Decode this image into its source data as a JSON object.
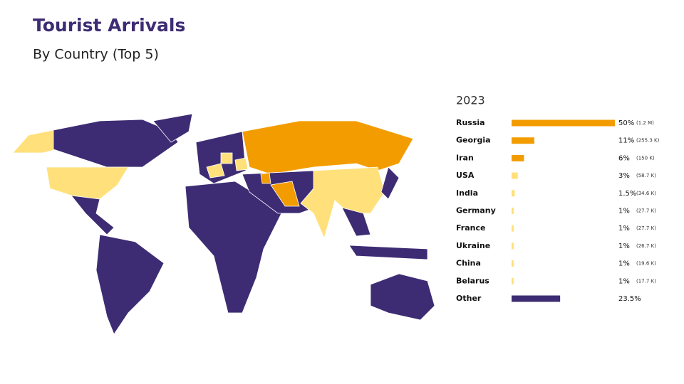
{
  "chart_data": {
    "type": "bar",
    "title": "Tourist Arrivals",
    "subtitle": "By Country (Top 5)",
    "year_label": "2023",
    "categories": [
      "Russia",
      "Georgia",
      "Iran",
      "USA",
      "India",
      "Germany",
      "France",
      "Ukraine",
      "China",
      "Belarus",
      "Other"
    ],
    "values": [
      50,
      11,
      6,
      3,
      1.5,
      1,
      1,
      1,
      1,
      1,
      23.5
    ],
    "value_labels": [
      "50%",
      "11%",
      "6%",
      "3%",
      "1.5%",
      "1%",
      "1%",
      "1%",
      "1%",
      "1%",
      "23.5%"
    ],
    "arrivals": [
      {
        "value": 1200000,
        "label": "(1.2 M)"
      },
      {
        "value": 255300,
        "label": "(255.3 K)"
      },
      {
        "value": 150000,
        "label": "(150 K)"
      },
      {
        "value": 58700,
        "label": "(58.7 K)"
      },
      {
        "value": 34600,
        "label": "(34.6 K)"
      },
      {
        "value": 27700,
        "label": "(27.7 K)"
      },
      {
        "value": 27700,
        "label": "(27.7 K)"
      },
      {
        "value": 26700,
        "label": "(26.7 K)"
      },
      {
        "value": 19600,
        "label": "(19.6 K)"
      },
      {
        "value": 17700,
        "label": "(17.7 K)"
      },
      null
    ],
    "colors": [
      "#f39c00",
      "#f39c00",
      "#f39c00",
      "#ffe07a",
      "#ffe07a",
      "#ffe07a",
      "#ffe07a",
      "#ffe07a",
      "#ffe07a",
      "#ffe07a",
      "#3d2c73"
    ],
    "xlim": [
      0,
      50
    ]
  }
}
